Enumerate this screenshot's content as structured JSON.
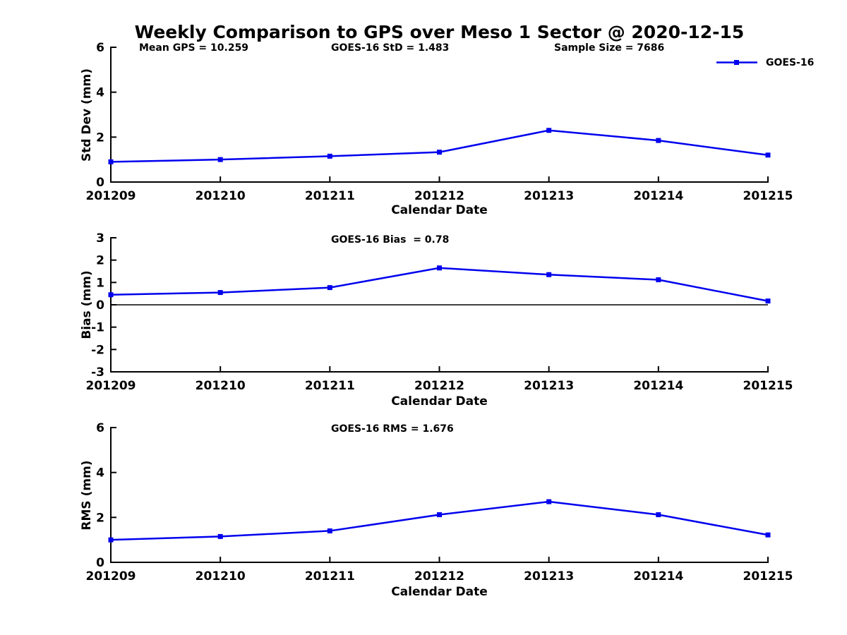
{
  "title": "Weekly Comparison to GPS over Meso 1 Sector @ 2020-12-15",
  "xlabel": "Calendar Date",
  "legend": {
    "label": "GOES-16"
  },
  "colors": {
    "series_blue": "#0000EE",
    "axis_black": "#000000",
    "text_black": "#000000",
    "background": "#FFFFFF"
  },
  "categories": [
    "201209",
    "201210",
    "201211",
    "201212",
    "201213",
    "201214",
    "201215"
  ],
  "chart_data": [
    {
      "type": "line",
      "name": "std-dev",
      "ylabel": "Std Dev (mm)",
      "xlabel": "Calendar Date",
      "ylim": [
        0,
        6
      ],
      "yticks": [
        0,
        2,
        4,
        6
      ],
      "grid": false,
      "legend_position": "upper right",
      "x": [
        "201209",
        "201210",
        "201211",
        "201212",
        "201213",
        "201214",
        "201215"
      ],
      "series": [
        {
          "name": "GOES-16",
          "color": "#0000EE",
          "marker": "square",
          "values": [
            0.9,
            1.0,
            1.15,
            1.33,
            2.3,
            1.85,
            1.2
          ]
        }
      ],
      "annotations": [
        {
          "text": "Mean GPS = 10.259"
        },
        {
          "text": "GOES-16 StD = 1.483"
        },
        {
          "text": "Sample Size = 7686"
        }
      ]
    },
    {
      "type": "line",
      "name": "bias",
      "ylabel": "Bias (mm)",
      "xlabel": "Calendar Date",
      "ylim": [
        -3,
        3
      ],
      "yticks": [
        -3,
        -2,
        -1,
        0,
        1,
        2,
        3
      ],
      "zero_line": true,
      "grid": false,
      "x": [
        "201209",
        "201210",
        "201211",
        "201212",
        "201213",
        "201214",
        "201215"
      ],
      "series": [
        {
          "name": "GOES-16",
          "color": "#0000EE",
          "marker": "square",
          "values": [
            0.45,
            0.55,
            0.77,
            1.65,
            1.35,
            1.12,
            0.17
          ]
        }
      ],
      "annotations": [
        {
          "text": "GOES-16 Bias  = 0.78"
        }
      ]
    },
    {
      "type": "line",
      "name": "rms",
      "ylabel": "RMS (mm)",
      "xlabel": "Calendar Date",
      "ylim": [
        0,
        6
      ],
      "yticks": [
        0,
        2,
        4,
        6
      ],
      "grid": false,
      "x": [
        "201209",
        "201210",
        "201211",
        "201212",
        "201213",
        "201214",
        "201215"
      ],
      "series": [
        {
          "name": "GOES-16",
          "color": "#0000EE",
          "marker": "square",
          "values": [
            1.0,
            1.15,
            1.4,
            2.12,
            2.7,
            2.12,
            1.22
          ]
        }
      ],
      "annotations": [
        {
          "text": "GOES-16 RMS = 1.676"
        }
      ]
    }
  ]
}
